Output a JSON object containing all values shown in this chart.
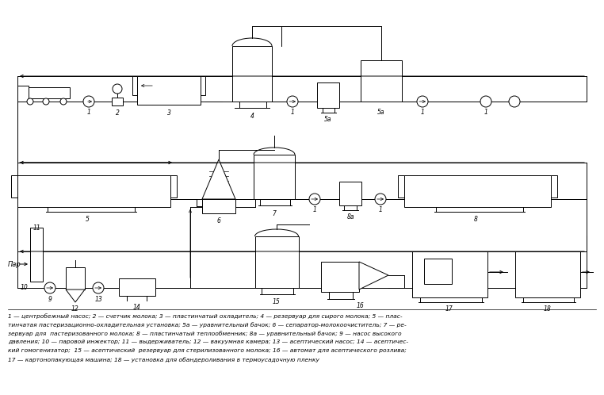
{
  "bg_color": "#ffffff",
  "line_color": "#000000",
  "fig_width": 7.62,
  "fig_height": 4.98,
  "caption_lines": [
    "1 — центробежный насос; 2 — счетчик молока; 3 — пластинчатый охладитель; 4 — резервуар для сырого молока; 5 — плас-",
    "тинчатая пастеризационно-охладительная установка; 5а — уравнительный бачок; 6 — сепаратор-молокоочиститель; 7 — ре-",
    "зервуар для  пастеризованного молока; 8 — пластинчатый теплообменник; 8а — уравнительный бачок; 9 — насос высокого",
    "давления; 10 — паровой инжектор; 11 — выдерживатель; 12 — вакуумная камера; 13 — асептический насос; 14 — асептичес-",
    "кий гомогенизатор;  15 — асептический  резервуар для стерилизованного молока; 16 — автомат для асептического розлива;",
    "17 — картонопакующая машина; 18 — установка для обандероливания в термоусадочную пленку"
  ]
}
